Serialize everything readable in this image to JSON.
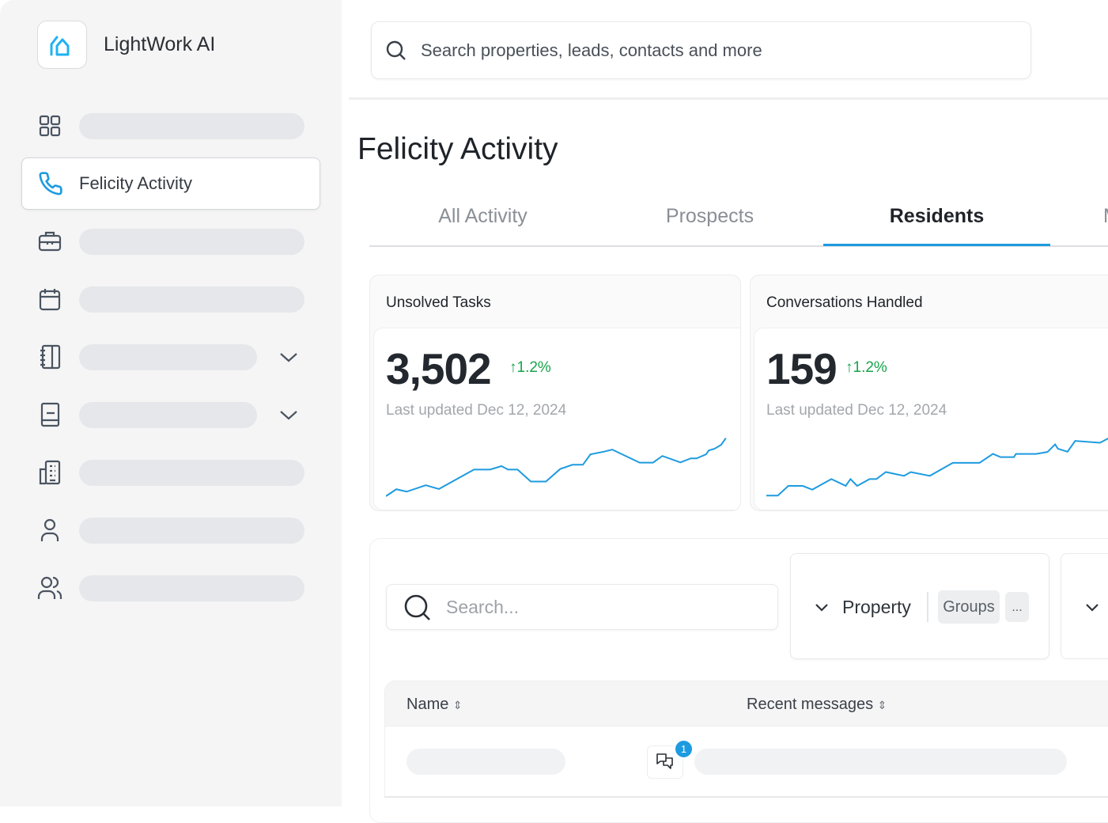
{
  "app": {
    "name": "LightWork AI",
    "accent_color": "#1e9be0"
  },
  "sidebar": {
    "items": [
      {
        "icon": "grid-icon",
        "label": ""
      },
      {
        "icon": "phone-icon",
        "label": "Felicity Activity",
        "active": true
      },
      {
        "icon": "briefcase-icon",
        "label": ""
      },
      {
        "icon": "calendar-icon",
        "label": ""
      },
      {
        "icon": "notebook-icon",
        "label": "",
        "expandable": true
      },
      {
        "icon": "book-icon",
        "label": "",
        "expandable": true
      },
      {
        "icon": "building-icon",
        "label": ""
      },
      {
        "icon": "user-icon",
        "label": ""
      },
      {
        "icon": "users-icon",
        "label": ""
      }
    ]
  },
  "header": {
    "search_placeholder": "Search properties, leads, contacts and more"
  },
  "page": {
    "title": "Felicity Activity"
  },
  "tabs": [
    {
      "label": "All Activity"
    },
    {
      "label": "Prospects"
    },
    {
      "label": "Residents",
      "active": true
    },
    {
      "label": "M"
    }
  ],
  "stats": [
    {
      "title": "Unsolved Tasks",
      "value": "3,502",
      "delta": "1.2%",
      "updated": "Last updated Dec 12, 2024"
    },
    {
      "title": "Conversations Handled",
      "value": "159",
      "delta": "1.2%",
      "updated": "Last updated Dec 12, 2024"
    }
  ],
  "filters": {
    "search_placeholder": "Search...",
    "property_label": "Property",
    "groups_label": "Groups",
    "more_label": "..."
  },
  "table": {
    "columns": [
      {
        "label": "Name"
      },
      {
        "label": "Recent messages"
      }
    ],
    "rows": [
      {
        "unread_count": "1"
      }
    ]
  }
}
